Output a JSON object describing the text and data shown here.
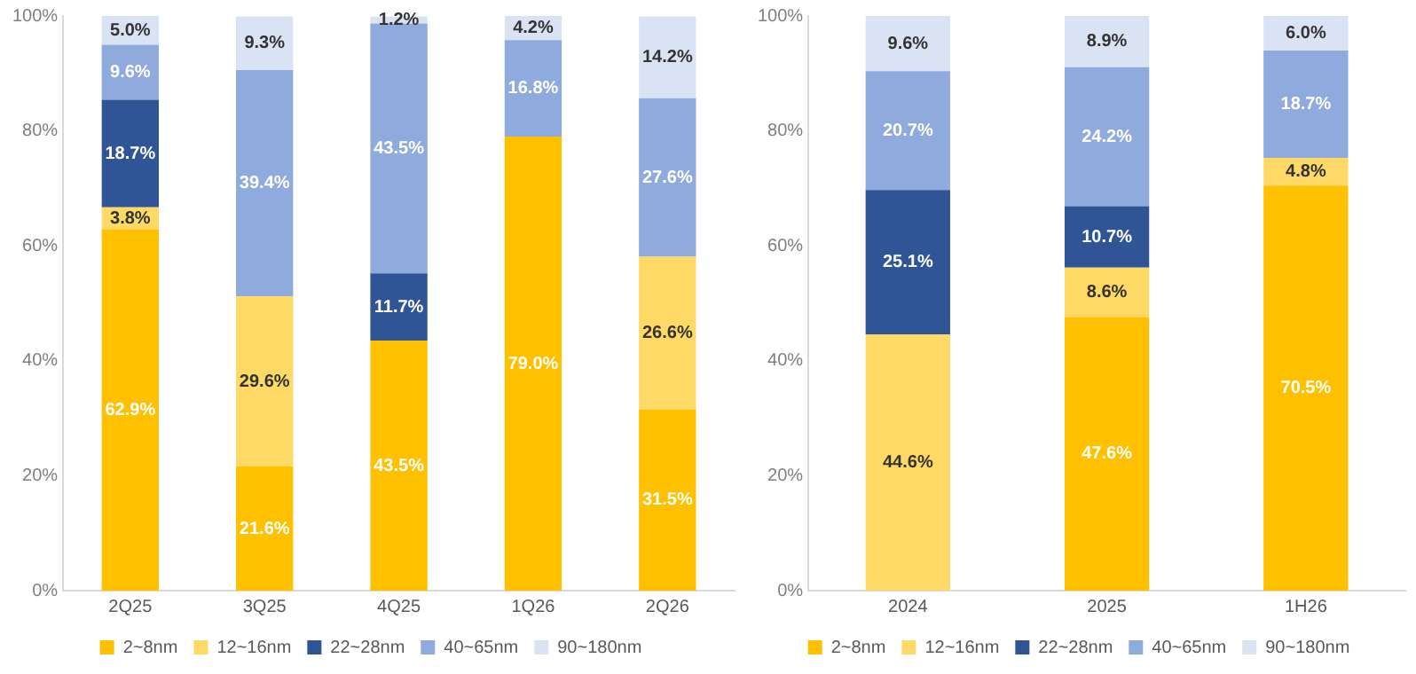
{
  "chart_data": [
    {
      "type": "bar",
      "stacked": true,
      "legend": "bottom",
      "grid": false,
      "categories": [
        "2Q25",
        "3Q25",
        "4Q25",
        "1Q26",
        "2Q26"
      ],
      "ylim": [
        0,
        100
      ],
      "yticks": [
        {
          "value": 0,
          "label": "0%"
        },
        {
          "value": 20,
          "label": "20%"
        },
        {
          "value": 40,
          "label": "40%"
        },
        {
          "value": 60,
          "label": "60%"
        },
        {
          "value": 80,
          "label": "80%"
        },
        {
          "value": 100,
          "label": "100%"
        }
      ],
      "series": [
        {
          "name": "2~8nm",
          "color": "#ffc000",
          "values": [
            62.9,
            21.6,
            43.5,
            79.0,
            31.5
          ],
          "value_labels": [
            "62.9%",
            "21.6%",
            "43.5%",
            "79.0%",
            "31.5%"
          ]
        },
        {
          "name": "12~16nm",
          "color": "#ffd966",
          "values": [
            3.8,
            29.6,
            null,
            null,
            26.6
          ],
          "value_labels": [
            "3.8%",
            "29.6%",
            null,
            null,
            "26.6%"
          ]
        },
        {
          "name": "22~28nm",
          "color": "#2f5597",
          "values": [
            18.7,
            null,
            11.7,
            null,
            null
          ],
          "value_labels": [
            "18.7%",
            null,
            "11.7%",
            null,
            null
          ]
        },
        {
          "name": "40~65nm",
          "color": "#8faadc",
          "values": [
            9.6,
            39.4,
            43.5,
            16.8,
            27.6
          ],
          "value_labels": [
            "9.6%",
            "39.4%",
            "43.5%",
            "16.8%",
            "27.6%"
          ]
        },
        {
          "name": "90~180nm",
          "color": "#dae3f3",
          "values": [
            5.0,
            9.3,
            1.2,
            4.2,
            14.2
          ],
          "value_labels": [
            "5.0%",
            "9.3%",
            "1.2%",
            "4.2%",
            "14.2%"
          ]
        }
      ]
    },
    {
      "type": "bar",
      "stacked": true,
      "legend": "bottom",
      "grid": false,
      "categories": [
        "2024",
        "2025",
        "1H26"
      ],
      "ylim": [
        0,
        100
      ],
      "yticks": [
        {
          "value": 0,
          "label": "0%"
        },
        {
          "value": 20,
          "label": "20%"
        },
        {
          "value": 40,
          "label": "40%"
        },
        {
          "value": 60,
          "label": "60%"
        },
        {
          "value": 80,
          "label": "80%"
        },
        {
          "value": 100,
          "label": "100%"
        }
      ],
      "series": [
        {
          "name": "2~8nm",
          "color": "#ffc000",
          "values": [
            null,
            47.6,
            70.5
          ],
          "value_labels": [
            null,
            "47.6%",
            "70.5%"
          ]
        },
        {
          "name": "12~16nm",
          "color": "#ffd966",
          "values": [
            44.6,
            8.6,
            4.8
          ],
          "value_labels": [
            "44.6%",
            "8.6%",
            "4.8%"
          ]
        },
        {
          "name": "22~28nm",
          "color": "#2f5597",
          "values": [
            25.1,
            10.7,
            null
          ],
          "value_labels": [
            "25.1%",
            "10.7%",
            null
          ]
        },
        {
          "name": "40~65nm",
          "color": "#8faadc",
          "values": [
            20.7,
            24.2,
            18.7
          ],
          "value_labels": [
            "20.7%",
            "24.2%",
            "18.7%"
          ]
        },
        {
          "name": "90~180nm",
          "color": "#dae3f3",
          "values": [
            9.6,
            8.9,
            6.0
          ],
          "value_labels": [
            "9.6%",
            "8.9%",
            "6.0%"
          ]
        }
      ]
    }
  ]
}
